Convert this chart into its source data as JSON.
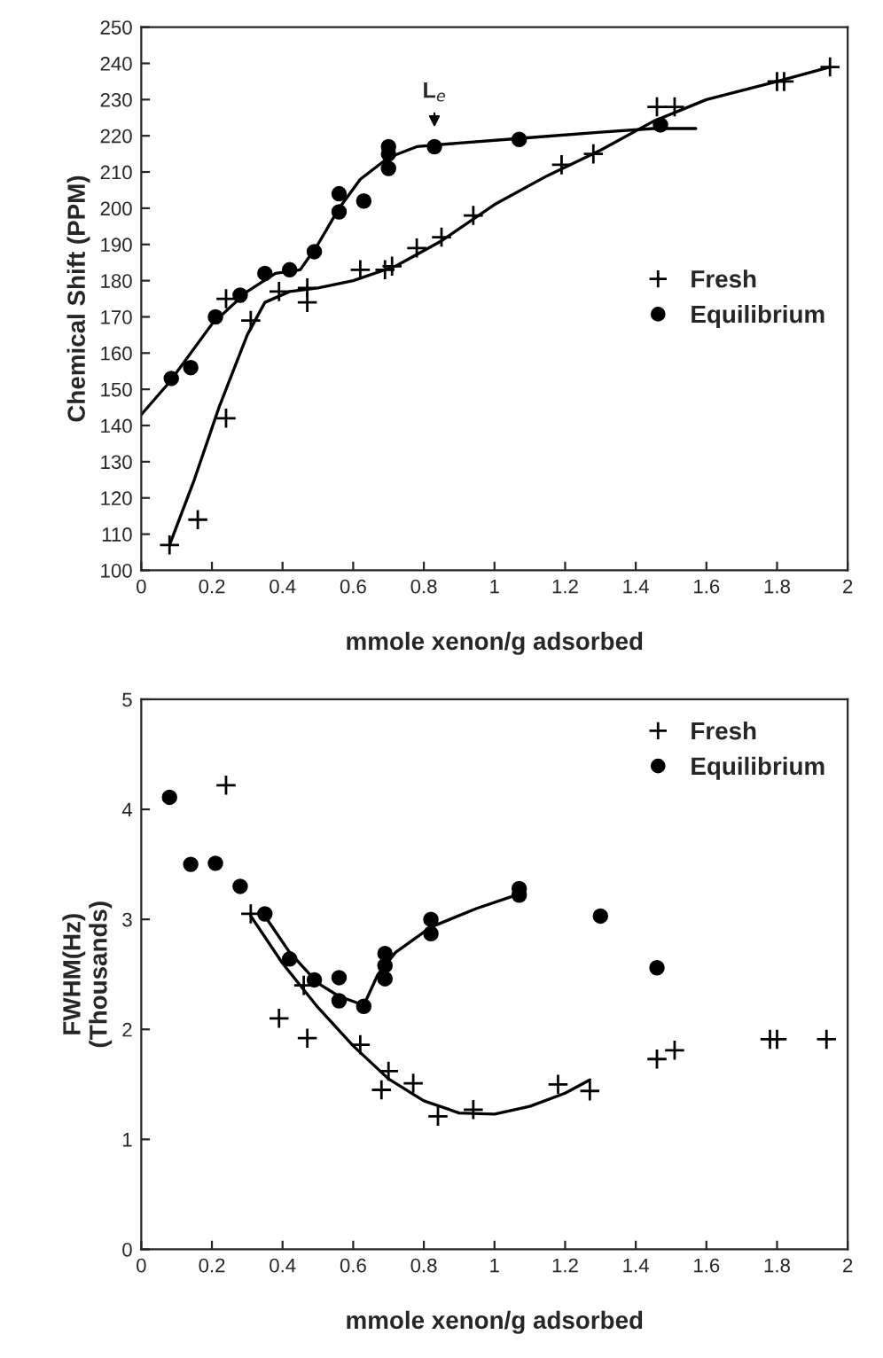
{
  "chart_data": [
    {
      "type": "scatter",
      "xlabel": "mmole xenon/g adsorbed",
      "ylabel": "Chemical Shift (PPM)",
      "xlim": [
        0,
        2
      ],
      "xticks": [
        0,
        0.2,
        0.4,
        0.6,
        0.8,
        1,
        1.2,
        1.4,
        1.6,
        1.8,
        2
      ],
      "ylim": [
        100,
        250
      ],
      "yticks": [
        100,
        110,
        120,
        130,
        140,
        150,
        160,
        170,
        180,
        190,
        200,
        210,
        220,
        230,
        240,
        250
      ],
      "grid": false,
      "legend": "right",
      "annotations": [
        {
          "text": "L$_{e}$",
          "x": 0.83,
          "y": 221
        }
      ],
      "series": [
        {
          "name": "Fresh",
          "marker": "cross",
          "color": "#000000",
          "x": [
            0.08,
            0.16,
            0.24,
            0.24,
            0.31,
            0.39,
            0.47,
            0.47,
            0.62,
            0.69,
            0.71,
            0.78,
            0.85,
            0.94,
            1.19,
            1.28,
            1.46,
            1.51,
            1.8,
            1.82,
            1.95
          ],
          "values": [
            107,
            114,
            142,
            175,
            169,
            177,
            178,
            174,
            183,
            183,
            184,
            189,
            192,
            198,
            212,
            215,
            228,
            228,
            235,
            235,
            239
          ]
        },
        {
          "name": "Equilibrium",
          "marker": "circle",
          "color": "#000000",
          "x": [
            0.085,
            0.14,
            0.21,
            0.28,
            0.35,
            0.42,
            0.49,
            0.56,
            0.56,
            0.63,
            0.7,
            0.7,
            0.7,
            0.83,
            1.07,
            1.47
          ],
          "values": [
            153,
            156,
            170,
            176,
            182,
            183,
            188,
            204,
            199,
            202,
            217,
            215,
            211,
            217,
            219,
            223
          ]
        },
        {
          "type": "line",
          "line_style": "solid",
          "color": "#000000",
          "x": [
            0,
            0.08,
            0.2,
            0.3,
            0.38,
            0.45,
            0.5,
            0.56,
            0.62,
            0.7,
            0.78,
            0.9,
            1.1,
            1.3,
            1.45,
            1.57
          ],
          "values": [
            143,
            152,
            168,
            177,
            182,
            183,
            190,
            200,
            208,
            214,
            217,
            218,
            219.5,
            221,
            222,
            222
          ]
        },
        {
          "type": "line",
          "line_style": "solid",
          "color": "#000000",
          "x": [
            0.08,
            0.15,
            0.22,
            0.3,
            0.35,
            0.42,
            0.5,
            0.6,
            0.72,
            0.85,
            1.0,
            1.15,
            1.3,
            1.45,
            1.6,
            1.8,
            1.95
          ],
          "values": [
            107,
            125,
            145,
            165,
            174,
            177,
            178,
            180,
            184,
            191,
            201,
            209,
            216,
            224,
            230,
            235,
            239
          ]
        }
      ]
    },
    {
      "type": "scatter",
      "xlabel": "mmole xenon/g adsorbed",
      "ylabel": "FWHM(Hz)\n(Thousands)",
      "xlim": [
        0,
        2
      ],
      "xticks": [
        0,
        0.2,
        0.4,
        0.6,
        0.8,
        1,
        1.2,
        1.4,
        1.6,
        1.8,
        2
      ],
      "ylim": [
        0,
        5
      ],
      "yticks": [
        0,
        1,
        2,
        3,
        4,
        5
      ],
      "grid": false,
      "legend": "top right",
      "series": [
        {
          "name": "Fresh",
          "marker": "cross",
          "color": "#000000",
          "x": [
            0.24,
            0.31,
            0.39,
            0.46,
            0.47,
            0.62,
            0.68,
            0.7,
            0.77,
            0.84,
            0.94,
            1.18,
            1.27,
            1.46,
            1.51,
            1.78,
            1.8,
            1.94
          ],
          "values": [
            4.22,
            3.05,
            2.1,
            2.4,
            1.92,
            1.86,
            1.45,
            1.62,
            1.51,
            1.21,
            1.27,
            1.5,
            1.44,
            1.73,
            1.81,
            1.91,
            1.91,
            1.91
          ]
        },
        {
          "name": "Equilibrium",
          "marker": "circle",
          "color": "#000000",
          "x": [
            0.08,
            0.14,
            0.21,
            0.28,
            0.35,
            0.42,
            0.49,
            0.56,
            0.56,
            0.63,
            0.69,
            0.69,
            0.69,
            0.82,
            0.82,
            1.07,
            1.07,
            1.3,
            1.46
          ],
          "values": [
            4.11,
            3.5,
            3.51,
            3.3,
            3.05,
            2.64,
            2.45,
            2.47,
            2.26,
            2.21,
            2.69,
            2.58,
            2.46,
            3.0,
            2.87,
            3.28,
            3.22,
            3.03,
            2.56
          ]
        },
        {
          "type": "line",
          "line_style": "solid",
          "color": "#000000",
          "x": [
            0.35,
            0.42,
            0.5,
            0.56,
            0.63,
            0.67,
            0.72,
            0.82,
            0.95,
            1.07
          ],
          "values": [
            3.03,
            2.7,
            2.42,
            2.3,
            2.22,
            2.5,
            2.7,
            2.93,
            3.1,
            3.23
          ]
        },
        {
          "type": "line",
          "line_style": "solid",
          "color": "#000000",
          "x": [
            0.31,
            0.4,
            0.5,
            0.6,
            0.7,
            0.8,
            0.9,
            1.0,
            1.1,
            1.2,
            1.27
          ],
          "values": [
            3.03,
            2.6,
            2.2,
            1.85,
            1.55,
            1.35,
            1.24,
            1.23,
            1.3,
            1.42,
            1.54
          ]
        }
      ]
    }
  ]
}
